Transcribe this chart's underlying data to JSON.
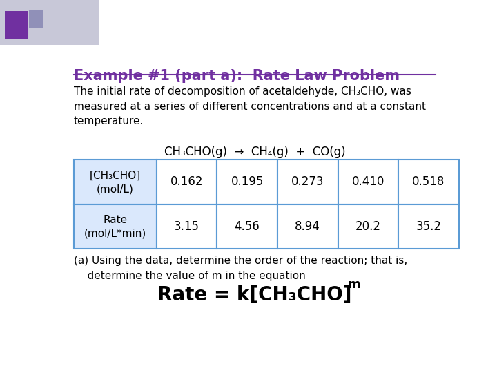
{
  "title": "Example #1 (part a):  Rate Law Problem",
  "title_color": "#7030A0",
  "bg_color": "#FFFFFF",
  "reaction": "CH₃CHO(g)  →  CH₄(g)  +  CO(g)",
  "table_header_bg": "#DAE8FC",
  "table_border_color": "#5B9BD5",
  "row1_label_line1": "[CH₃CHO]",
  "row1_label_line2": "(mol/L)",
  "row2_label_line1": "Rate",
  "row2_label_line2": "(mol/L*min)",
  "conc_values": [
    "0.162",
    "0.195",
    "0.273",
    "0.410",
    "0.518"
  ],
  "rate_values": [
    "3.15",
    "4.56",
    "8.94",
    "20.2",
    "35.2"
  ],
  "footer": "(a) Using the data, determine the order of the reaction; that is,\n    determine the value of m in the equation",
  "equation_base": "Rate = k[CH₃CHO]",
  "equation_exp": "m"
}
